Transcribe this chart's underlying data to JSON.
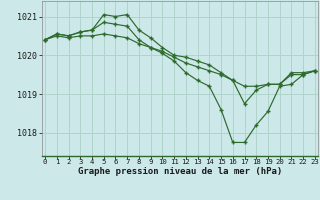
{
  "title": "Graphe pression niveau de la mer (hPa)",
  "bg_color": "#cde8e8",
  "grid_color": "#b0d4cc",
  "line_color": "#2d6a2d",
  "marker_color": "#2d6a2d",
  "ylim": [
    1017.4,
    1021.4
  ],
  "yticks": [
    1018,
    1019,
    1020,
    1021
  ],
  "xlim": [
    -0.3,
    23.3
  ],
  "xticks": [
    0,
    1,
    2,
    3,
    4,
    5,
    6,
    7,
    8,
    9,
    10,
    11,
    12,
    13,
    14,
    15,
    16,
    17,
    18,
    19,
    20,
    21,
    22,
    23
  ],
  "series": [
    [
      1020.4,
      1020.55,
      1020.5,
      1020.6,
      1020.65,
      1021.05,
      1021.0,
      1021.05,
      1020.65,
      1020.45,
      1020.2,
      1020.0,
      1019.95,
      1019.85,
      1019.75,
      1019.55,
      1019.35,
      1018.75,
      1019.1,
      1019.25,
      1019.25,
      1019.5,
      1019.5,
      1019.6
    ],
    [
      1020.4,
      1020.55,
      1020.5,
      1020.6,
      1020.65,
      1020.85,
      1020.8,
      1020.75,
      1020.4,
      1020.2,
      1020.05,
      1019.85,
      1019.55,
      1019.35,
      1019.2,
      1018.6,
      1017.75,
      1017.75,
      1018.2,
      1018.55,
      1019.2,
      1019.25,
      1019.5,
      1019.6
    ],
    [
      1020.4,
      1020.5,
      1020.45,
      1020.5,
      1020.5,
      1020.55,
      1020.5,
      1020.45,
      1020.3,
      1020.2,
      1020.1,
      1019.95,
      1019.8,
      1019.7,
      1019.6,
      1019.5,
      1019.35,
      1019.2,
      1019.2,
      1019.25,
      1019.25,
      1019.55,
      1019.55,
      1019.6
    ]
  ]
}
